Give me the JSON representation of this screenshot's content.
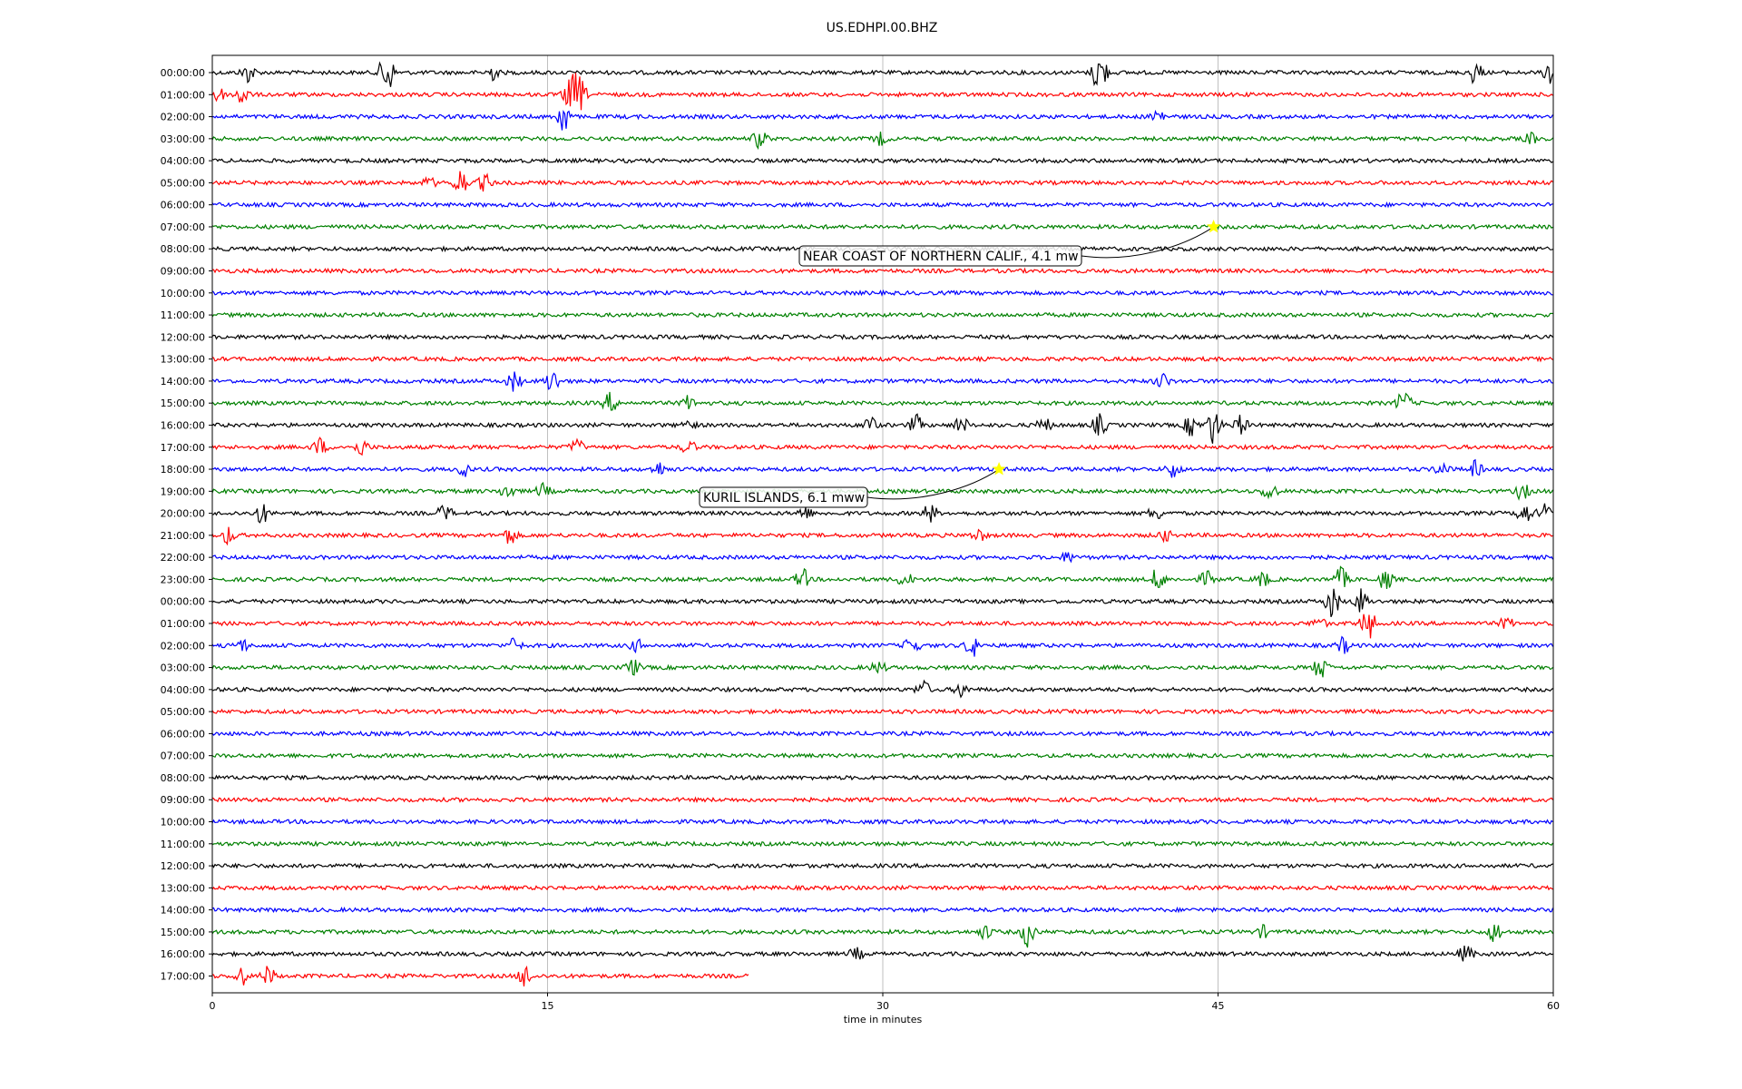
{
  "chart_data": {
    "type": "line",
    "title": "US.EDHPI.00.BHZ",
    "xlabel": "time in minutes",
    "x_ticks": [
      0,
      15,
      30,
      45,
      60
    ],
    "xlim": [
      0,
      60
    ],
    "grid": "vertical",
    "trace_colors": [
      "#000000",
      "#ff0000",
      "#0000ff",
      "#008000"
    ],
    "row_labels": [
      "00:00:00",
      "01:00:00",
      "02:00:00",
      "03:00:00",
      "04:00:00",
      "05:00:00",
      "06:00:00",
      "07:00:00",
      "08:00:00",
      "09:00:00",
      "10:00:00",
      "11:00:00",
      "12:00:00",
      "13:00:00",
      "14:00:00",
      "15:00:00",
      "16:00:00",
      "17:00:00",
      "18:00:00",
      "19:00:00",
      "20:00:00",
      "21:00:00",
      "22:00:00",
      "23:00:00",
      "00:00:00",
      "01:00:00",
      "02:00:00",
      "03:00:00",
      "04:00:00",
      "05:00:00",
      "06:00:00",
      "07:00:00",
      "08:00:00",
      "09:00:00",
      "10:00:00",
      "11:00:00",
      "12:00:00",
      "13:00:00",
      "14:00:00",
      "15:00:00",
      "16:00:00",
      "17:00:00"
    ],
    "last_row_end_minute": 24,
    "bursts": [
      {
        "row": 0,
        "minute": 1.6,
        "amp": 1.0
      },
      {
        "row": 0,
        "minute": 7.8,
        "amp": 2.5
      },
      {
        "row": 0,
        "minute": 12.5,
        "amp": 0.8
      },
      {
        "row": 0,
        "minute": 39.7,
        "amp": 2.5
      },
      {
        "row": 0,
        "minute": 56.5,
        "amp": 1.2
      },
      {
        "row": 0,
        "minute": 59.9,
        "amp": 1.5
      },
      {
        "row": 1,
        "minute": 0.2,
        "amp": 1.0
      },
      {
        "row": 1,
        "minute": 1.3,
        "amp": 1.2
      },
      {
        "row": 1,
        "minute": 16.0,
        "amp": 1.6
      },
      {
        "row": 1,
        "minute": 16.4,
        "amp": 2.0
      },
      {
        "row": 2,
        "minute": 15.7,
        "amp": 1.8
      },
      {
        "row": 2,
        "minute": 42.3,
        "amp": 0.8
      },
      {
        "row": 3,
        "minute": 24.5,
        "amp": 1.0
      },
      {
        "row": 3,
        "minute": 29.9,
        "amp": 0.6
      },
      {
        "row": 3,
        "minute": 59.0,
        "amp": 0.5
      },
      {
        "row": 5,
        "minute": 9.7,
        "amp": 0.5
      },
      {
        "row": 5,
        "minute": 11.1,
        "amp": 1.5
      },
      {
        "row": 5,
        "minute": 12.2,
        "amp": 0.9
      },
      {
        "row": 14,
        "minute": 13.5,
        "amp": 1.0
      },
      {
        "row": 14,
        "minute": 15.2,
        "amp": 1.3
      },
      {
        "row": 14,
        "minute": 42.5,
        "amp": 0.8
      },
      {
        "row": 15,
        "minute": 17.8,
        "amp": 1.0
      },
      {
        "row": 15,
        "minute": 21.3,
        "amp": 0.7
      },
      {
        "row": 15,
        "minute": 53.3,
        "amp": 1.3
      },
      {
        "row": 16,
        "minute": 21.3,
        "amp": 0.6
      },
      {
        "row": 16,
        "minute": 29.4,
        "amp": 1.0
      },
      {
        "row": 16,
        "minute": 31.5,
        "amp": 1.0
      },
      {
        "row": 16,
        "minute": 33.5,
        "amp": 0.9
      },
      {
        "row": 16,
        "minute": 37.2,
        "amp": 0.8
      },
      {
        "row": 16,
        "minute": 39.7,
        "amp": 1.1
      },
      {
        "row": 16,
        "minute": 43.8,
        "amp": 1.1
      },
      {
        "row": 16,
        "minute": 44.8,
        "amp": 2.0
      },
      {
        "row": 16,
        "minute": 46.0,
        "amp": 1.0
      },
      {
        "row": 17,
        "minute": 4.8,
        "amp": 0.9
      },
      {
        "row": 17,
        "minute": 6.7,
        "amp": 0.8
      },
      {
        "row": 17,
        "minute": 16.3,
        "amp": 0.8
      },
      {
        "row": 17,
        "minute": 21.3,
        "amp": 0.7
      },
      {
        "row": 18,
        "minute": 11.2,
        "amp": 0.8
      },
      {
        "row": 18,
        "minute": 20.0,
        "amp": 0.7
      },
      {
        "row": 18,
        "minute": 43.0,
        "amp": 0.9
      },
      {
        "row": 18,
        "minute": 55.0,
        "amp": 0.7
      },
      {
        "row": 18,
        "minute": 56.5,
        "amp": 0.8
      },
      {
        "row": 19,
        "minute": 13.2,
        "amp": 0.8
      },
      {
        "row": 19,
        "minute": 14.8,
        "amp": 0.7
      },
      {
        "row": 19,
        "minute": 47.3,
        "amp": 1.0
      },
      {
        "row": 19,
        "minute": 58.6,
        "amp": 0.9
      },
      {
        "row": 20,
        "minute": 2.2,
        "amp": 1.1
      },
      {
        "row": 20,
        "minute": 10.4,
        "amp": 0.9
      },
      {
        "row": 20,
        "minute": 26.5,
        "amp": 0.7
      },
      {
        "row": 20,
        "minute": 32.1,
        "amp": 1.0
      },
      {
        "row": 20,
        "minute": 42.2,
        "amp": 0.7
      },
      {
        "row": 20,
        "minute": 58.7,
        "amp": 1.2
      },
      {
        "row": 20,
        "minute": 59.6,
        "amp": 1.0
      },
      {
        "row": 21,
        "minute": 0.7,
        "amp": 0.9
      },
      {
        "row": 21,
        "minute": 13.3,
        "amp": 1.0
      },
      {
        "row": 21,
        "minute": 34.3,
        "amp": 0.6
      },
      {
        "row": 21,
        "minute": 42.6,
        "amp": 0.6
      },
      {
        "row": 22,
        "minute": 38.3,
        "amp": 0.5
      },
      {
        "row": 23,
        "minute": 26.4,
        "amp": 1.1
      },
      {
        "row": 23,
        "minute": 31.0,
        "amp": 0.8
      },
      {
        "row": 23,
        "minute": 42.3,
        "amp": 1.2
      },
      {
        "row": 23,
        "minute": 44.5,
        "amp": 0.8
      },
      {
        "row": 23,
        "minute": 47.0,
        "amp": 0.8
      },
      {
        "row": 23,
        "minute": 50.5,
        "amp": 1.2
      },
      {
        "row": 23,
        "minute": 52.5,
        "amp": 1.1
      },
      {
        "row": 24,
        "minute": 50.1,
        "amp": 1.7
      },
      {
        "row": 24,
        "minute": 51.4,
        "amp": 1.2
      },
      {
        "row": 25,
        "minute": 49.5,
        "amp": 0.6
      },
      {
        "row": 25,
        "minute": 51.7,
        "amp": 1.8
      },
      {
        "row": 25,
        "minute": 57.9,
        "amp": 0.6
      },
      {
        "row": 26,
        "minute": 1.3,
        "amp": 0.7
      },
      {
        "row": 26,
        "minute": 13.5,
        "amp": 0.7
      },
      {
        "row": 26,
        "minute": 19.0,
        "amp": 0.6
      },
      {
        "row": 26,
        "minute": 31.3,
        "amp": 1.0
      },
      {
        "row": 26,
        "minute": 34.0,
        "amp": 1.2
      },
      {
        "row": 26,
        "minute": 50.6,
        "amp": 0.8
      },
      {
        "row": 27,
        "minute": 18.8,
        "amp": 0.9
      },
      {
        "row": 27,
        "minute": 29.8,
        "amp": 0.6
      },
      {
        "row": 27,
        "minute": 49.6,
        "amp": 1.2
      },
      {
        "row": 28,
        "minute": 31.8,
        "amp": 0.9
      },
      {
        "row": 28,
        "minute": 33.5,
        "amp": 0.7
      },
      {
        "row": 39,
        "minute": 34.6,
        "amp": 0.7
      },
      {
        "row": 39,
        "minute": 36.5,
        "amp": 1.6
      },
      {
        "row": 39,
        "minute": 47.0,
        "amp": 0.6
      },
      {
        "row": 39,
        "minute": 57.4,
        "amp": 1.1
      },
      {
        "row": 40,
        "minute": 28.8,
        "amp": 0.6
      },
      {
        "row": 40,
        "minute": 56.1,
        "amp": 0.9
      },
      {
        "row": 41,
        "minute": 1.3,
        "amp": 1.0
      },
      {
        "row": 41,
        "minute": 2.5,
        "amp": 1.0
      },
      {
        "row": 41,
        "minute": 14.0,
        "amp": 1.2
      }
    ],
    "annotations": [
      {
        "text": "NEAR COAST OF NORTHERN CALIF., 4.1 mw",
        "row": 7,
        "minute": 44.8,
        "marker": "star",
        "marker_color": "#ffff00"
      },
      {
        "text": "KURIL ISLANDS, 6.1 mww",
        "row": 18,
        "minute": 35.2,
        "marker": "star",
        "marker_color": "#ffff00"
      }
    ]
  }
}
